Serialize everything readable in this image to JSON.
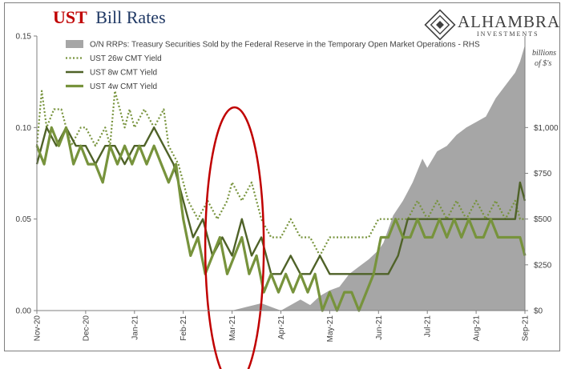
{
  "title": {
    "part1": "UST",
    "part2": "Bill Rates"
  },
  "logo": {
    "name": "ALHAMBRA",
    "sub": "INVESTMENTS"
  },
  "units_label": {
    "line1": "billions",
    "line2": "of $'s"
  },
  "chart_data": {
    "type": "line",
    "x_tick_labels": [
      "Nov-20",
      "Dec-20",
      "Jan-21",
      "Feb-21",
      "Mar-21",
      "Apr-21",
      "May-21",
      "Jun-21",
      "Jul-21",
      "Aug-21",
      "Sep-21"
    ],
    "x_range": [
      0,
      10
    ],
    "y_left": {
      "ticks": [
        "0.00",
        "0.05",
        "0.10",
        "0.15"
      ],
      "range": [
        0,
        0.15
      ]
    },
    "y_right": {
      "ticks": [
        "$0",
        "$250",
        "$500",
        "$750",
        "$1,000"
      ],
      "range": [
        0,
        1500
      ]
    },
    "grid": false,
    "legend_position": "top-center",
    "series": [
      {
        "name": "O/N RRPs: Treasury Securities Sold by the Federal Reserve in the Temporary Open Market Operations - RHS",
        "axis": "right",
        "style": "area",
        "color": "#a6a6a6",
        "x": [
          0,
          4.0,
          4.3,
          4.6,
          4.9,
          5.0,
          5.2,
          5.4,
          5.6,
          5.8,
          6.0,
          6.2,
          6.4,
          6.6,
          6.8,
          7.0,
          7.1,
          7.3,
          7.5,
          7.7,
          7.9,
          8.0,
          8.2,
          8.4,
          8.6,
          8.8,
          9.0,
          9.2,
          9.4,
          9.6,
          9.8,
          9.9,
          10.0
        ],
        "y": [
          0,
          0,
          20,
          40,
          10,
          0,
          30,
          60,
          30,
          80,
          110,
          130,
          200,
          240,
          280,
          330,
          370,
          520,
          600,
          700,
          830,
          780,
          870,
          900,
          960,
          1000,
          1030,
          1060,
          1160,
          1230,
          1300,
          1360,
          1450
        ]
      },
      {
        "name": "UST 26w CMT Yield",
        "axis": "left",
        "style": "dotted",
        "color": "#77933c",
        "x": [
          0,
          0.1,
          0.2,
          0.35,
          0.5,
          0.7,
          0.9,
          1.0,
          1.2,
          1.4,
          1.5,
          1.6,
          1.8,
          1.9,
          2.0,
          2.2,
          2.4,
          2.6,
          2.7,
          2.9,
          3.0,
          3.1,
          3.3,
          3.5,
          3.7,
          3.9,
          4.0,
          4.2,
          4.4,
          4.6,
          4.8,
          5.0,
          5.2,
          5.4,
          5.6,
          5.8,
          6.0,
          6.2,
          6.4,
          6.6,
          6.8,
          7.0,
          7.2,
          7.4,
          7.6,
          7.8,
          8.0,
          8.2,
          8.4,
          8.6,
          8.8,
          9.0,
          9.2,
          9.4,
          9.6,
          9.8,
          9.9,
          10.0
        ],
        "y": [
          0.09,
          0.12,
          0.1,
          0.11,
          0.11,
          0.09,
          0.1,
          0.1,
          0.09,
          0.1,
          0.09,
          0.12,
          0.1,
          0.11,
          0.1,
          0.11,
          0.1,
          0.11,
          0.09,
          0.08,
          0.07,
          0.06,
          0.05,
          0.06,
          0.05,
          0.06,
          0.07,
          0.06,
          0.07,
          0.05,
          0.04,
          0.04,
          0.05,
          0.04,
          0.04,
          0.03,
          0.04,
          0.04,
          0.04,
          0.04,
          0.04,
          0.05,
          0.05,
          0.05,
          0.05,
          0.06,
          0.05,
          0.06,
          0.05,
          0.06,
          0.05,
          0.06,
          0.05,
          0.06,
          0.05,
          0.06,
          0.05,
          0.05
        ]
      },
      {
        "name": "UST 8w CMT Yield",
        "axis": "left",
        "style": "solid",
        "color": "#4f6228",
        "x": [
          0,
          0.2,
          0.4,
          0.6,
          0.8,
          1.0,
          1.2,
          1.4,
          1.6,
          1.8,
          2.0,
          2.2,
          2.4,
          2.6,
          2.8,
          3.0,
          3.1,
          3.2,
          3.4,
          3.6,
          3.8,
          4.0,
          4.2,
          4.4,
          4.6,
          4.8,
          5.0,
          5.2,
          5.4,
          5.6,
          5.8,
          6.0,
          6.2,
          6.4,
          6.6,
          6.8,
          7.0,
          7.2,
          7.4,
          7.6,
          7.8,
          8.0,
          8.2,
          8.4,
          8.6,
          8.8,
          9.0,
          9.2,
          9.4,
          9.6,
          9.8,
          9.9,
          10.0
        ],
        "y": [
          0.08,
          0.1,
          0.09,
          0.1,
          0.09,
          0.09,
          0.08,
          0.09,
          0.09,
          0.08,
          0.09,
          0.09,
          0.1,
          0.09,
          0.08,
          0.06,
          0.05,
          0.04,
          0.05,
          0.03,
          0.04,
          0.03,
          0.05,
          0.03,
          0.04,
          0.02,
          0.02,
          0.03,
          0.02,
          0.02,
          0.03,
          0.02,
          0.02,
          0.02,
          0.02,
          0.02,
          0.02,
          0.02,
          0.03,
          0.05,
          0.05,
          0.05,
          0.05,
          0.05,
          0.05,
          0.05,
          0.05,
          0.05,
          0.05,
          0.05,
          0.05,
          0.07,
          0.06
        ]
      },
      {
        "name": "UST 4w CMT Yield",
        "axis": "left",
        "style": "solid",
        "color": "#77933c",
        "x": [
          0,
          0.15,
          0.3,
          0.45,
          0.6,
          0.75,
          0.9,
          1.05,
          1.2,
          1.35,
          1.5,
          1.65,
          1.8,
          1.95,
          2.1,
          2.25,
          2.4,
          2.55,
          2.7,
          2.85,
          3.0,
          3.15,
          3.3,
          3.45,
          3.6,
          3.75,
          3.9,
          4.05,
          4.2,
          4.35,
          4.5,
          4.65,
          4.8,
          4.95,
          5.1,
          5.25,
          5.4,
          5.55,
          5.7,
          5.85,
          6.0,
          6.15,
          6.3,
          6.45,
          6.6,
          6.75,
          6.9,
          7.05,
          7.2,
          7.35,
          7.5,
          7.65,
          7.8,
          7.95,
          8.1,
          8.25,
          8.4,
          8.55,
          8.7,
          8.85,
          9.0,
          9.15,
          9.3,
          9.45,
          9.6,
          9.75,
          9.9,
          10.0
        ],
        "y": [
          0.09,
          0.08,
          0.1,
          0.09,
          0.1,
          0.08,
          0.09,
          0.08,
          0.08,
          0.07,
          0.09,
          0.08,
          0.09,
          0.08,
          0.09,
          0.08,
          0.09,
          0.08,
          0.07,
          0.08,
          0.05,
          0.03,
          0.04,
          0.02,
          0.03,
          0.04,
          0.02,
          0.03,
          0.04,
          0.02,
          0.03,
          0.01,
          0.02,
          0.01,
          0.02,
          0.01,
          0.02,
          0.01,
          0.02,
          0.0,
          0.01,
          0.0,
          0.01,
          0.01,
          0.0,
          0.01,
          0.02,
          0.04,
          0.04,
          0.05,
          0.04,
          0.04,
          0.05,
          0.04,
          0.04,
          0.05,
          0.04,
          0.05,
          0.04,
          0.05,
          0.04,
          0.04,
          0.05,
          0.04,
          0.04,
          0.04,
          0.04,
          0.03
        ]
      }
    ],
    "annotations": [
      {
        "type": "ellipse",
        "color": "#c00000",
        "x_center": 4.05,
        "y_center": 0.035,
        "x_radius": 0.6,
        "y_radius": 0.076
      }
    ]
  }
}
